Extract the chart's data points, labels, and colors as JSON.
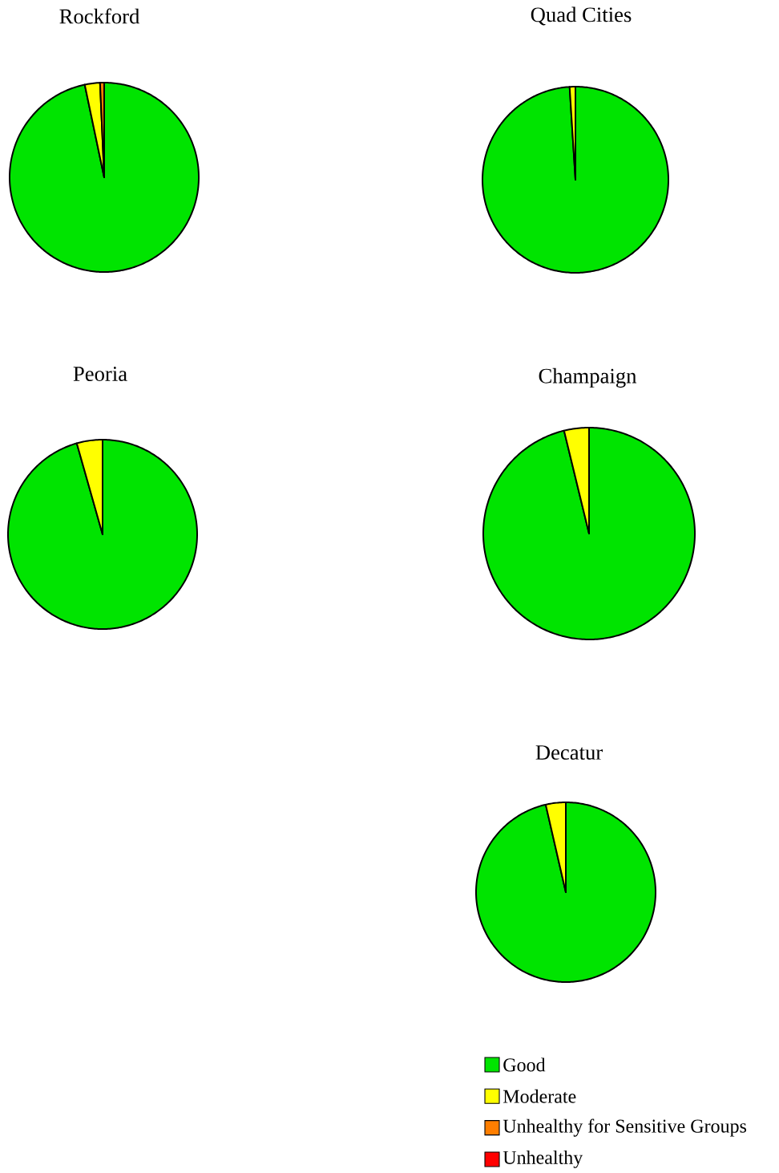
{
  "chart_data": [
    {
      "type": "pie",
      "title": "Rockford",
      "categories": [
        null,
        null,
        null,
        null
      ],
      "values": [
        96.7,
        2.6,
        0.7,
        0
      ],
      "colors": [
        "#00e400",
        "#ffff00",
        "#ff7e00",
        "#ff0000"
      ]
    },
    {
      "type": "pie",
      "title": "Quad Cities",
      "categories": [
        null,
        null,
        null,
        null
      ],
      "values": [
        99,
        1,
        0,
        0
      ],
      "colors": [
        "#00e400",
        "#ffff00",
        "#ff7e00",
        "#ff0000"
      ]
    },
    {
      "type": "pie",
      "title": "Peoria",
      "categories": [
        null,
        null,
        null,
        null
      ],
      "values": [
        95.6,
        4.4,
        0,
        0
      ],
      "colors": [
        "#00e400",
        "#ffff00",
        "#ff7e00",
        "#ff0000"
      ]
    },
    {
      "type": "pie",
      "title": "Champaign",
      "categories": [
        null,
        null,
        null,
        null
      ],
      "values": [
        96.2,
        3.8,
        0,
        0
      ],
      "colors": [
        "#00e400",
        "#ffff00",
        "#ff7e00",
        "#ff0000"
      ]
    },
    {
      "type": "pie",
      "title": "Decatur",
      "categories": [
        "Good",
        "Moderate",
        "Unhealthy for Sensitive Groups",
        "Unhealthy"
      ],
      "values": [
        96.4,
        3.6,
        0,
        0
      ],
      "colors": [
        "#00e400",
        "#ffff00",
        "#ff7e00",
        "#ff0000"
      ],
      "legend": "bottom"
    }
  ]
}
